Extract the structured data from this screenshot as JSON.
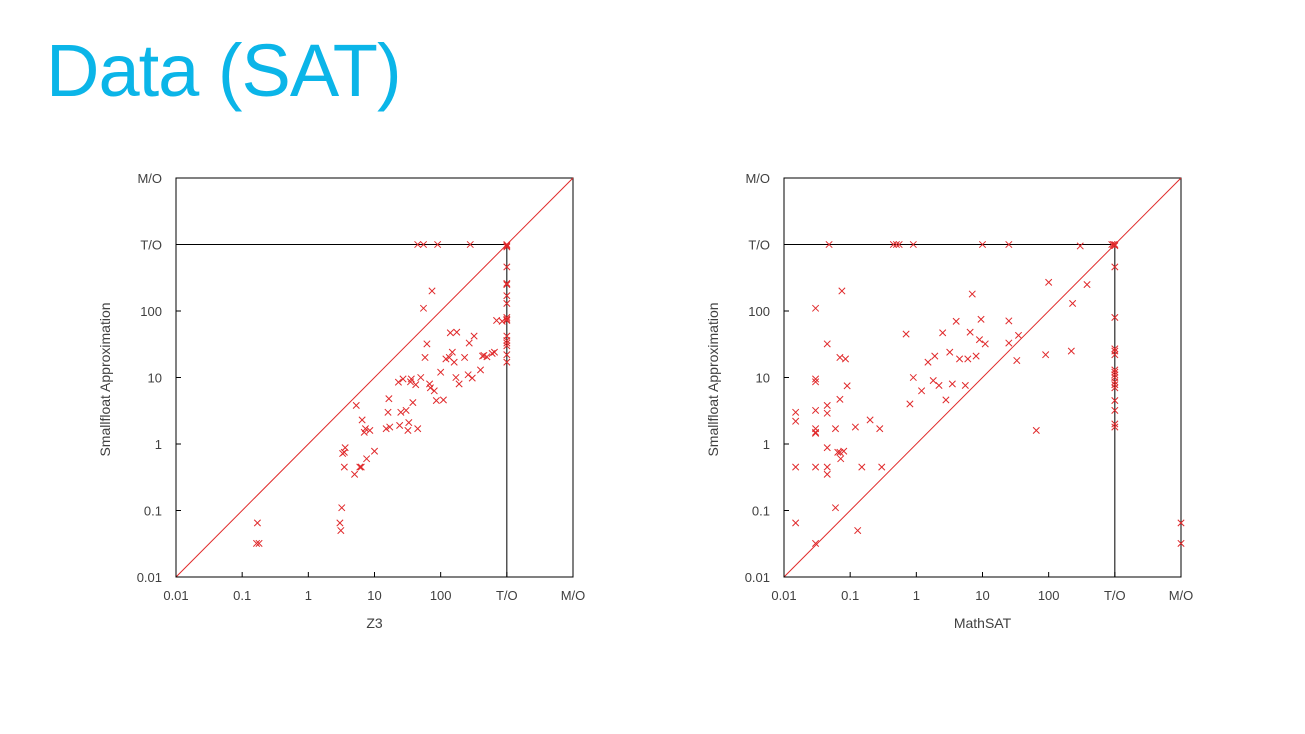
{
  "slide": {
    "title": "Data (SAT)",
    "title_color": "#0bb5e8"
  },
  "colors": {
    "point": "#e0292b",
    "diagonal": "#e02a2a",
    "frame": "#000000",
    "text": "#404040"
  },
  "chart_data": [
    {
      "type": "scatter",
      "title": "",
      "xlabel": "Z3",
      "ylabel": "Smallfloat Approximation",
      "scale": "log",
      "tick_labels": [
        "0.01",
        "0.1",
        "1",
        "10",
        "100",
        "T/O",
        "M/O"
      ],
      "tick_values": [
        0.01,
        0.1,
        1,
        10,
        100,
        1000,
        10000
      ],
      "xlim": [
        0.01,
        10000
      ],
      "ylim": [
        0.01,
        10000
      ],
      "timeout": 1000,
      "memout": 10000,
      "grid": false,
      "diagonal": true,
      "points": [
        [
          0.17,
          0.065
        ],
        [
          0.165,
          0.032
        ],
        [
          0.18,
          0.032
        ],
        [
          3.0,
          0.065
        ],
        [
          3.1,
          0.05
        ],
        [
          3.2,
          0.11
        ],
        [
          3.3,
          0.72
        ],
        [
          3.5,
          0.75
        ],
        [
          3.6,
          0.88
        ],
        [
          3.5,
          0.45
        ],
        [
          5.0,
          0.35
        ],
        [
          5.3,
          3.8
        ],
        [
          6.0,
          0.45
        ],
        [
          6.3,
          0.45
        ],
        [
          6.5,
          2.3
        ],
        [
          7.0,
          1.5
        ],
        [
          7.3,
          1.7
        ],
        [
          7.6,
          0.6
        ],
        [
          8.5,
          1.6
        ],
        [
          10.0,
          0.78
        ],
        [
          15.0,
          1.7
        ],
        [
          16.0,
          3.0
        ],
        [
          16.5,
          4.8
        ],
        [
          17.0,
          1.8
        ],
        [
          23.0,
          8.5
        ],
        [
          24.0,
          1.9
        ],
        [
          25.0,
          3.0
        ],
        [
          27.0,
          9.5
        ],
        [
          30.0,
          3.2
        ],
        [
          32.0,
          1.6
        ],
        [
          33.0,
          2.1
        ],
        [
          35.0,
          8.6
        ],
        [
          36.0,
          9.5
        ],
        [
          38.0,
          4.2
        ],
        [
          42.0,
          7.8
        ],
        [
          45.0,
          1.7
        ],
        [
          50.0,
          10.0
        ],
        [
          55.0,
          110.0
        ],
        [
          58.0,
          20.0
        ],
        [
          62.0,
          32.0
        ],
        [
          68.0,
          8.0
        ],
        [
          70.0,
          7.0
        ],
        [
          74.0,
          200.0
        ],
        [
          80.0,
          6.3
        ],
        [
          86.0,
          4.5
        ],
        [
          100.0,
          12.0
        ],
        [
          110.0,
          4.6
        ],
        [
          120.0,
          19.0
        ],
        [
          135.0,
          20.0
        ],
        [
          140.0,
          47.0
        ],
        [
          150.0,
          24.0
        ],
        [
          160.0,
          17.0
        ],
        [
          170.0,
          10.0
        ],
        [
          175.0,
          48.0
        ],
        [
          190.0,
          8.0
        ],
        [
          230.0,
          20.0
        ],
        [
          260.0,
          11.0
        ],
        [
          270.0,
          33.0
        ],
        [
          300.0,
          9.8
        ],
        [
          320.0,
          42.0
        ],
        [
          400.0,
          13.0
        ],
        [
          430.0,
          21.0
        ],
        [
          450.0,
          21.5
        ],
        [
          500.0,
          20.5
        ],
        [
          600.0,
          23.0
        ],
        [
          650.0,
          24.0
        ],
        [
          700.0,
          72.0
        ],
        [
          850.0,
          70.0
        ],
        [
          45.0,
          1000
        ],
        [
          55.0,
          1000
        ],
        [
          90.0,
          1000
        ],
        [
          280.0,
          1000
        ],
        [
          1000,
          1000
        ],
        [
          1000,
          960
        ],
        [
          1000,
          920
        ],
        [
          1000,
          460
        ],
        [
          1000,
          260
        ],
        [
          1000,
          250
        ],
        [
          1000,
          170
        ],
        [
          1000,
          130
        ],
        [
          1000,
          80
        ],
        [
          1000,
          75
        ],
        [
          1000,
          72
        ],
        [
          1000,
          42
        ],
        [
          1000,
          36
        ],
        [
          1000,
          33
        ],
        [
          1000,
          30
        ],
        [
          1000,
          22
        ],
        [
          1000,
          17
        ]
      ]
    },
    {
      "type": "scatter",
      "title": "",
      "xlabel": "MathSAT",
      "ylabel": "Smallfloat Approximation",
      "scale": "log",
      "tick_labels": [
        "0.01",
        "0.1",
        "1",
        "10",
        "100",
        "T/O",
        "M/O"
      ],
      "tick_values": [
        0.01,
        0.1,
        1,
        10,
        100,
        1000,
        10000
      ],
      "xlim": [
        0.01,
        10000
      ],
      "ylim": [
        0.01,
        10000
      ],
      "timeout": 1000,
      "memout": 10000,
      "grid": false,
      "diagonal": true,
      "points": [
        [
          0.015,
          3.0
        ],
        [
          0.015,
          2.2
        ],
        [
          0.015,
          0.45
        ],
        [
          0.015,
          0.065
        ],
        [
          0.03,
          110.0
        ],
        [
          0.03,
          9.5
        ],
        [
          0.03,
          8.6
        ],
        [
          0.03,
          3.2
        ],
        [
          0.03,
          1.7
        ],
        [
          0.03,
          1.5
        ],
        [
          0.03,
          1.45
        ],
        [
          0.03,
          0.45
        ],
        [
          0.03,
          0.032
        ],
        [
          0.045,
          32.0
        ],
        [
          0.045,
          3.8
        ],
        [
          0.045,
          2.9
        ],
        [
          0.045,
          0.88
        ],
        [
          0.045,
          0.45
        ],
        [
          0.045,
          0.35
        ],
        [
          0.048,
          1000
        ],
        [
          0.06,
          1.7
        ],
        [
          0.06,
          0.11
        ],
        [
          0.065,
          0.75
        ],
        [
          0.07,
          20.0
        ],
        [
          0.07,
          4.7
        ],
        [
          0.07,
          0.75
        ],
        [
          0.072,
          0.6
        ],
        [
          0.075,
          200.0
        ],
        [
          0.08,
          0.78
        ],
        [
          0.085,
          19.0
        ],
        [
          0.09,
          7.5
        ],
        [
          0.12,
          1.8
        ],
        [
          0.13,
          0.05
        ],
        [
          0.15,
          0.45
        ],
        [
          0.2,
          2.3
        ],
        [
          0.28,
          1.7
        ],
        [
          0.3,
          0.45
        ],
        [
          0.45,
          1000
        ],
        [
          0.5,
          1000
        ],
        [
          0.55,
          1000
        ],
        [
          0.9,
          1000
        ],
        [
          0.7,
          45.0
        ],
        [
          0.8,
          4.0
        ],
        [
          0.9,
          10.0
        ],
        [
          1.2,
          6.3
        ],
        [
          1.5,
          17.0
        ],
        [
          1.8,
          9.0
        ],
        [
          1.9,
          21.0
        ],
        [
          2.2,
          7.6
        ],
        [
          2.5,
          47.0
        ],
        [
          2.8,
          4.6
        ],
        [
          3.2,
          24.0
        ],
        [
          3.5,
          8.0
        ],
        [
          4.0,
          70.0
        ],
        [
          4.5,
          19.0
        ],
        [
          5.5,
          7.6
        ],
        [
          6.0,
          19.0
        ],
        [
          6.5,
          48.0
        ],
        [
          7.0,
          180.0
        ],
        [
          8.0,
          21.0
        ],
        [
          9.0,
          37.0
        ],
        [
          9.5,
          75.0
        ],
        [
          10.0,
          1000
        ],
        [
          11.0,
          32.0
        ],
        [
          25.0,
          1000
        ],
        [
          25.0,
          71.0
        ],
        [
          25.0,
          33.0
        ],
        [
          33.0,
          18.0
        ],
        [
          35.0,
          43.0
        ],
        [
          65.0,
          1.6
        ],
        [
          90.0,
          22.0
        ],
        [
          100.0,
          270.0
        ],
        [
          220.0,
          25.0
        ],
        [
          230.0,
          130.0
        ],
        [
          300.0,
          950
        ],
        [
          380.0,
          250.0
        ],
        [
          900,
          1000
        ],
        [
          950,
          1000
        ],
        [
          1000,
          1000
        ],
        [
          1000,
          960
        ],
        [
          1000,
          460
        ],
        [
          1000,
          80
        ],
        [
          1000,
          27
        ],
        [
          1000,
          25
        ],
        [
          1000,
          22
        ],
        [
          1000,
          13
        ],
        [
          1000,
          12
        ],
        [
          1000,
          11
        ],
        [
          1000,
          10
        ],
        [
          1000,
          8.6
        ],
        [
          1000,
          7.8
        ],
        [
          1000,
          7.0
        ],
        [
          1000,
          4.5
        ],
        [
          1000,
          3.2
        ],
        [
          1000,
          2.0
        ],
        [
          1000,
          1.8
        ],
        [
          10000,
          0.065
        ],
        [
          10000,
          0.032
        ]
      ]
    }
  ]
}
